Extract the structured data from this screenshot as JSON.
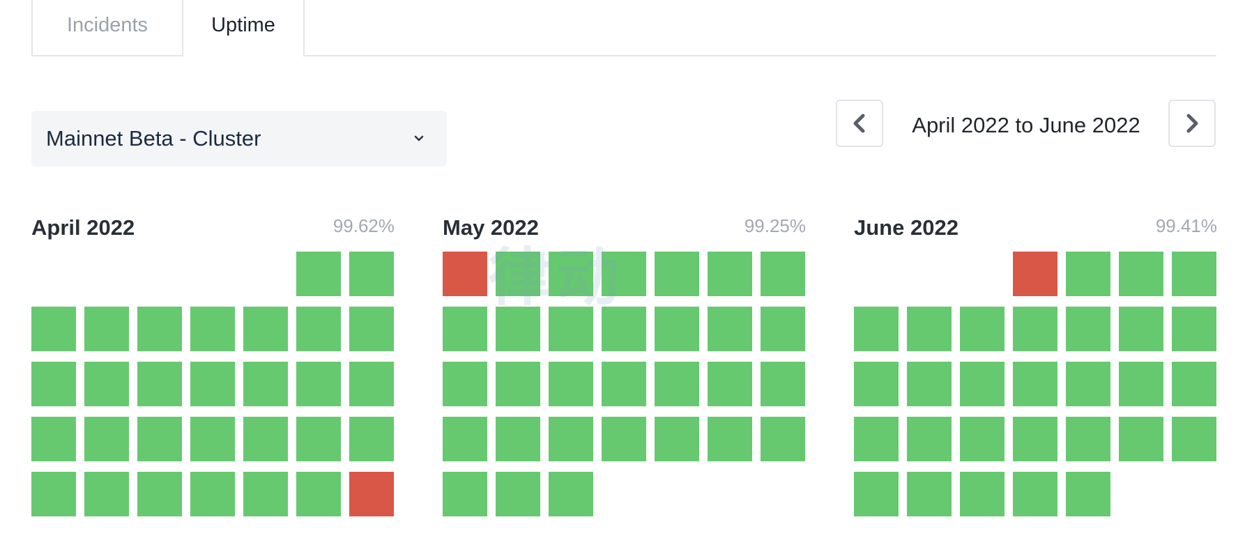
{
  "tabs": [
    {
      "label": "Incidents",
      "active": false
    },
    {
      "label": "Uptime",
      "active": true
    }
  ],
  "dropdown": {
    "selected": "Mainnet Beta - Cluster"
  },
  "date_nav": {
    "range_label": "April 2022 to June 2022"
  },
  "watermark": "律动",
  "colors": {
    "up": "#66c970",
    "down": "#d95746"
  },
  "months": [
    {
      "title": "April 2022",
      "uptime": "99.62%",
      "start_weekday": 5,
      "days": [
        "up",
        "up",
        "up",
        "up",
        "up",
        "up",
        "up",
        "up",
        "up",
        "up",
        "up",
        "up",
        "up",
        "up",
        "up",
        "up",
        "up",
        "up",
        "up",
        "up",
        "up",
        "up",
        "up",
        "up",
        "up",
        "up",
        "up",
        "up",
        "up",
        "down"
      ]
    },
    {
      "title": "May 2022",
      "uptime": "99.25%",
      "start_weekday": 0,
      "days": [
        "down",
        "up",
        "up",
        "up",
        "up",
        "up",
        "up",
        "up",
        "up",
        "up",
        "up",
        "up",
        "up",
        "up",
        "up",
        "up",
        "up",
        "up",
        "up",
        "up",
        "up",
        "up",
        "up",
        "up",
        "up",
        "up",
        "up",
        "up",
        "up",
        "up",
        "up"
      ]
    },
    {
      "title": "June 2022",
      "uptime": "99.41%",
      "start_weekday": 3,
      "days": [
        "down",
        "up",
        "up",
        "up",
        "up",
        "up",
        "up",
        "up",
        "up",
        "up",
        "up",
        "up",
        "up",
        "up",
        "up",
        "up",
        "up",
        "up",
        "up",
        "up",
        "up",
        "up",
        "up",
        "up",
        "up",
        "up",
        "up",
        "up",
        "up",
        "up"
      ]
    }
  ]
}
